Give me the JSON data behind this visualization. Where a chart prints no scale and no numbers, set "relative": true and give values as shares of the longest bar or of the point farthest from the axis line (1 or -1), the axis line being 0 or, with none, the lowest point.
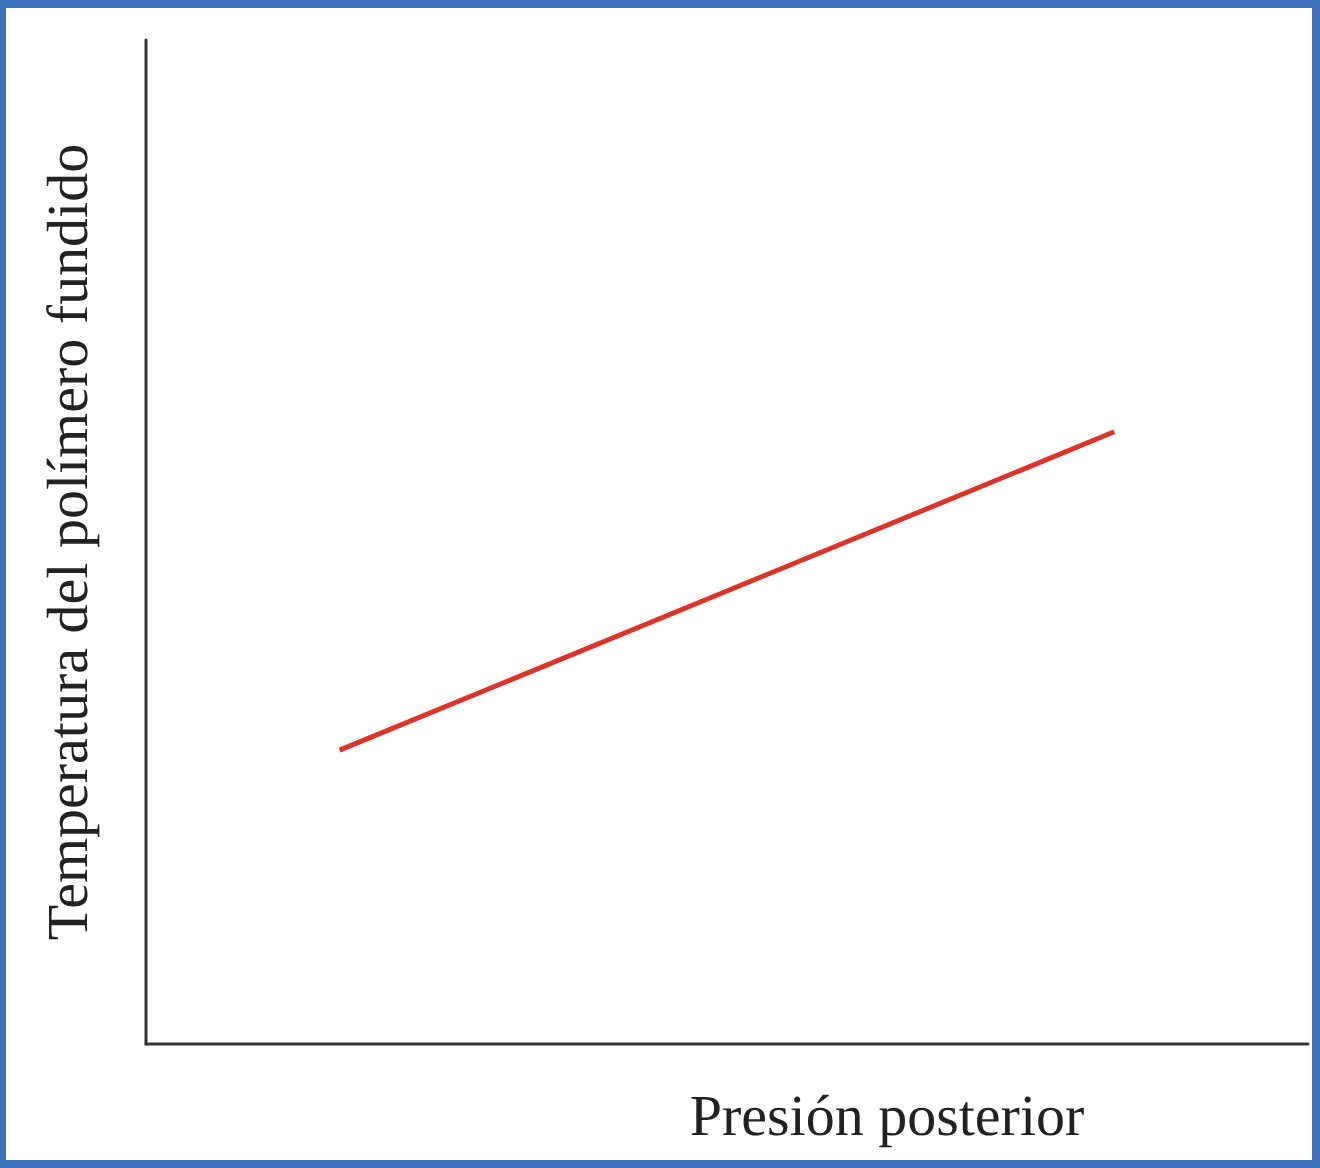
{
  "chart_data": {
    "type": "line",
    "relative": true,
    "xlabel": "Presión posterior",
    "ylabel": "Temperatura del polímero fundido",
    "categories": [
      null,
      null,
      null
    ],
    "series": [
      {
        "color": "#d9352a",
        "values": [
          0.48,
          0.74,
          1
        ]
      }
    ],
    "grid": false,
    "legend": false,
    "marker": "none",
    "line_style": "solid"
  }
}
